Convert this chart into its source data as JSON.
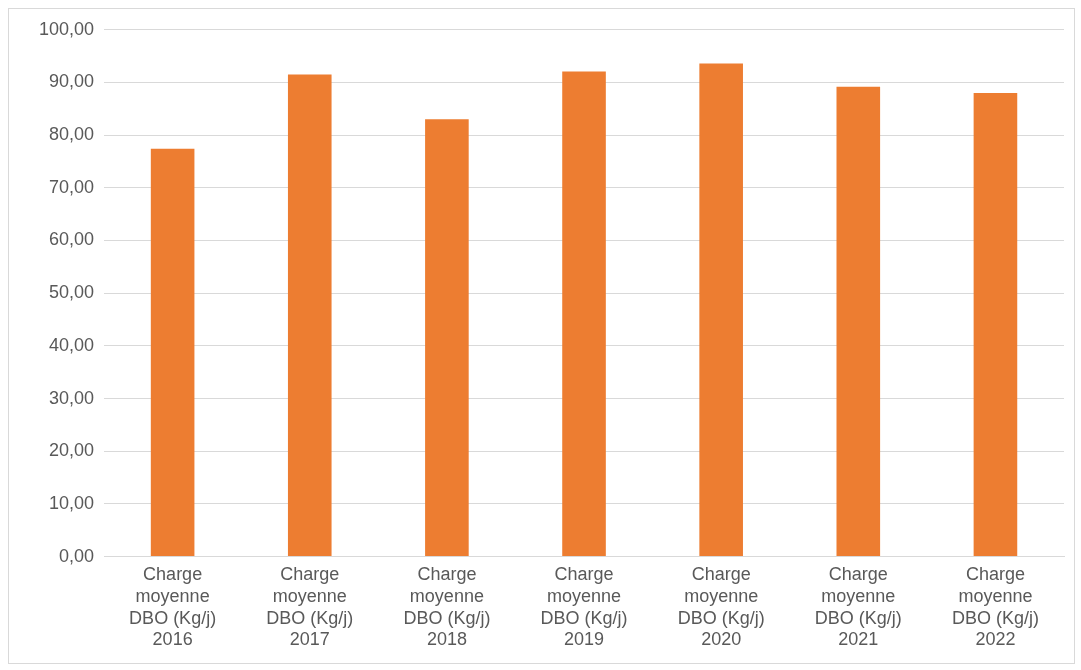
{
  "chart_data": {
    "type": "bar",
    "categories": [
      "Charge moyenne DBO (Kg/j) 2016",
      "Charge moyenne DBO (Kg/j) 2017",
      "Charge moyenne DBO (Kg/j) 2018",
      "Charge moyenne DBO (Kg/j) 2019",
      "Charge moyenne DBO (Kg/j) 2020",
      "Charge moyenne DBO (Kg/j) 2021",
      "Charge moyenne DBO (Kg/j) 2022"
    ],
    "values": [
      77.4,
      91.5,
      83.0,
      92.1,
      93.6,
      89.2,
      88.0
    ],
    "color": "#ed7d31",
    "ylim": [
      0,
      100
    ],
    "yticks": [
      {
        "value": 0,
        "label": "0,00"
      },
      {
        "value": 10,
        "label": "10,00"
      },
      {
        "value": 20,
        "label": "20,00"
      },
      {
        "value": 30,
        "label": "30,00"
      },
      {
        "value": 40,
        "label": "40,00"
      },
      {
        "value": 50,
        "label": "50,00"
      },
      {
        "value": 60,
        "label": "60,00"
      },
      {
        "value": 70,
        "label": "70,00"
      },
      {
        "value": 80,
        "label": "80,00"
      },
      {
        "value": 90,
        "label": "90,00"
      },
      {
        "value": 100,
        "label": "100,00"
      }
    ],
    "grid": "y",
    "legend": false
  }
}
